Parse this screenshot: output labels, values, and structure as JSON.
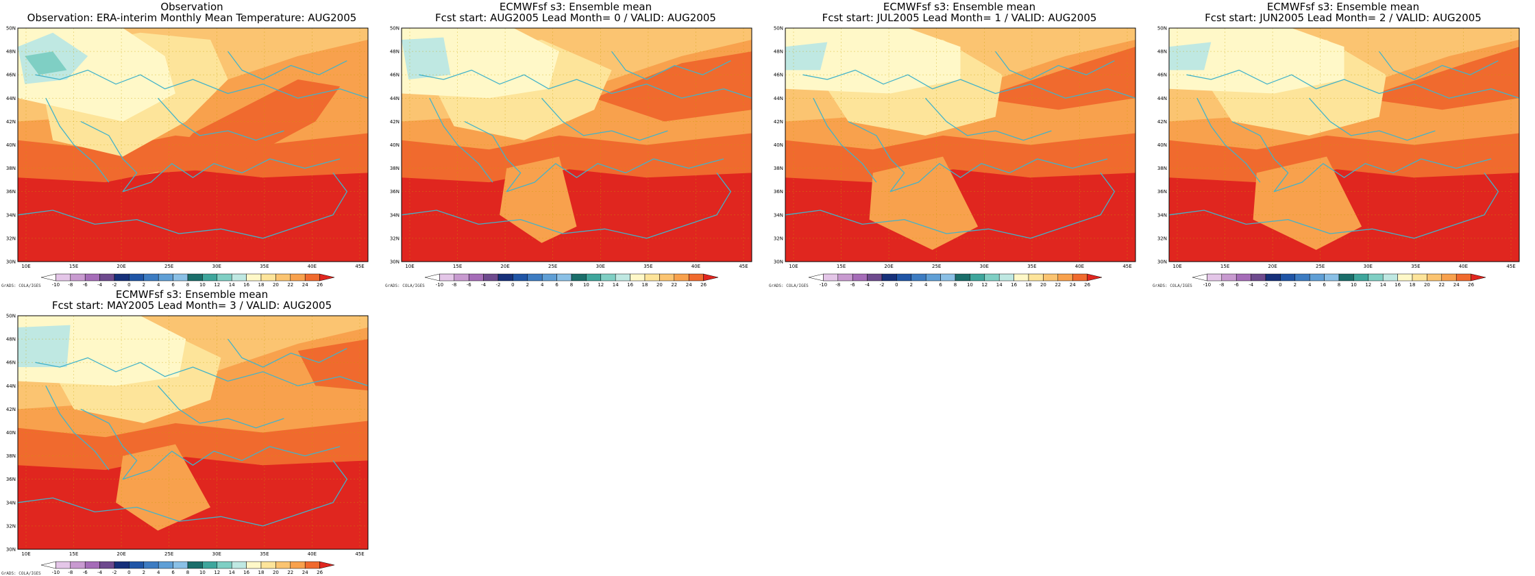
{
  "colorbar": {
    "labels": [
      "-10",
      "-8",
      "-6",
      "-4",
      "-2",
      "0",
      "2",
      "4",
      "6",
      "8",
      "10",
      "12",
      "14",
      "16",
      "18",
      "20",
      "22",
      "24",
      "26"
    ],
    "colors": [
      "#ffffff",
      "#e4c6e8",
      "#c89ad0",
      "#a56cb8",
      "#6e4a8e",
      "#16307a",
      "#1f55a6",
      "#3d7cc2",
      "#5f9fd6",
      "#8ac0e6",
      "#1a6e6a",
      "#3ea69c",
      "#7fcfc4",
      "#bfe8e2",
      "#fff8c8",
      "#fde49a",
      "#fbc471",
      "#f8a14d",
      "#f06a2e",
      "#e0261f"
    ]
  },
  "axes": {
    "lat_labels": [
      "30N",
      "32N",
      "34N",
      "36N",
      "38N",
      "40N",
      "42N",
      "44N",
      "46N",
      "48N",
      "50N"
    ],
    "lon_labels": [
      "10E",
      "15E",
      "20E",
      "25E",
      "30E",
      "35E",
      "40E",
      "45E"
    ]
  },
  "credit": "GrADS: COLA/IGES",
  "panels": [
    {
      "title1": "Observation",
      "title2": "Observation: ERA-interim Monthly Mean Temperature: AUG2005",
      "variant": 0
    },
    {
      "title1": "ECMWFsf s3: Ensemble mean",
      "title2": "Fcst start: AUG2005   Lead Month= 0 / VALID: AUG2005",
      "variant": 1
    },
    {
      "title1": "ECMWFsf s3: Ensemble mean",
      "title2": "Fcst start: JUL2005   Lead Month= 1 / VALID: AUG2005",
      "variant": 2
    },
    {
      "title1": "ECMWFsf s3: Ensemble mean",
      "title2": "Fcst start: JUN2005   Lead Month= 2 / VALID: AUG2005",
      "variant": 2
    },
    {
      "title1": "ECMWFsf s3: Ensemble mean",
      "title2": "Fcst start: MAY2005   Lead Month= 3 / VALID: AUG2005",
      "variant": 3
    }
  ]
}
